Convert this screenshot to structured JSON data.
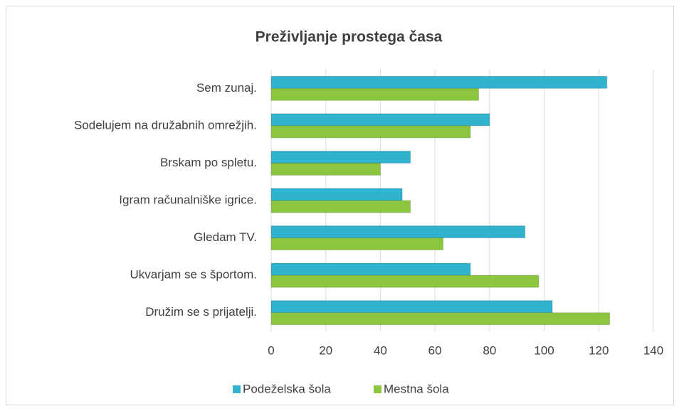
{
  "chart_data": {
    "type": "hbar",
    "title": "Preživljanje prostega časa",
    "categories": [
      "Sem zunaj.",
      "Sodelujem na družabnih omrežjih.",
      "Brskam po spletu.",
      "Igram računalniške igrice.",
      "Gledam TV.",
      "Ukvarjam se s športom.",
      "Družim se s prijatelji."
    ],
    "series": [
      {
        "name": "Podeželska šola",
        "color": "#2fb3cf",
        "values": [
          123,
          80,
          51,
          48,
          93,
          73,
          103
        ]
      },
      {
        "name": "Mestna šola",
        "color": "#8cc63e",
        "values": [
          76,
          73,
          40,
          51,
          63,
          98,
          124
        ]
      }
    ],
    "xlim": [
      0,
      140
    ],
    "xticks": [
      0,
      20,
      40,
      60,
      80,
      100,
      120,
      140
    ],
    "grid": true,
    "legend": "bottom"
  }
}
